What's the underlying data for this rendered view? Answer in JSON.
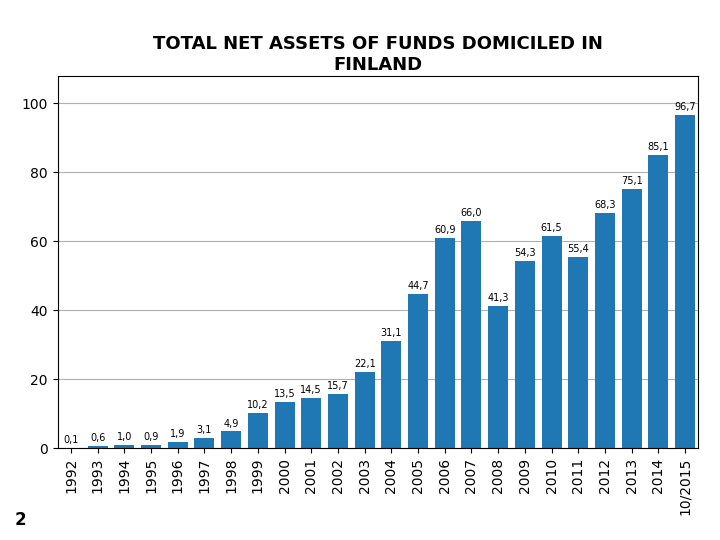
{
  "chart_data": {
    "type": "bar",
    "title": "TOTAL NET ASSETS OF FUNDS DOMICILED IN\nFINLAND",
    "categories": [
      "1992",
      "1993",
      "1994",
      "1995",
      "1996",
      "1997",
      "1998",
      "1999",
      "2000",
      "2001",
      "2002",
      "2003",
      "2004",
      "2005",
      "2006",
      "2007",
      "2008",
      "2009",
      "2010",
      "2011",
      "2012",
      "2013",
      "2014",
      "10/2015"
    ],
    "values": [
      0.1,
      0.6,
      1.0,
      0.9,
      1.9,
      3.1,
      4.9,
      10.2,
      13.5,
      14.5,
      15.7,
      22.1,
      31.1,
      44.7,
      60.9,
      66.0,
      41.3,
      54.3,
      61.5,
      55.4,
      68.3,
      75.1,
      85.1,
      96.7
    ],
    "value_labels": [
      "0,1",
      "0,6",
      "1,0",
      "0,9",
      "1,9",
      "3,1",
      "4,9",
      "10,2",
      "13,5",
      "14,5",
      "15,7",
      "22,1",
      "31,1",
      "44,7",
      "60,9",
      "66,0",
      "41,3",
      "54,3",
      "61,5",
      "55,4",
      "68,3",
      "75,1",
      "85,1",
      "96,7"
    ],
    "data_labels": true,
    "ylim": [
      0,
      108
    ],
    "yticks": [
      0,
      20,
      40,
      60,
      80,
      100
    ],
    "grid": true,
    "annotations": [
      "2"
    ]
  }
}
